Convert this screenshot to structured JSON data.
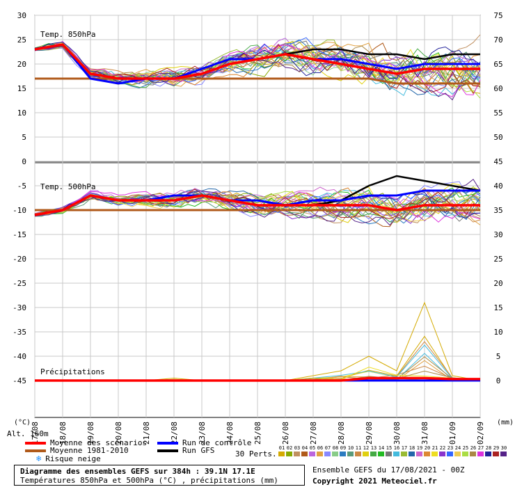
{
  "chart_data": {
    "type": "line",
    "x_dates": [
      "17/08",
      "18/08",
      "19/08",
      "20/08",
      "21/08",
      "22/08",
      "23/08",
      "24/08",
      "25/08",
      "26/08",
      "27/08",
      "28/08",
      "29/08",
      "30/08",
      "31/08",
      "01/09",
      "02/09"
    ],
    "left_axis": {
      "label": "(°C)",
      "ticks": [
        30,
        25,
        20,
        15,
        10,
        5,
        0,
        -5,
        -10,
        -15,
        -20,
        -25,
        -30,
        -35,
        -40,
        -45
      ]
    },
    "right_axis": {
      "label": "(mm)",
      "ticks": [
        75,
        70,
        65,
        60,
        55,
        50,
        45,
        40,
        35,
        30,
        25,
        20,
        15,
        10,
        5,
        0
      ]
    },
    "panels": {
      "t850": {
        "label": "Temp. 850hPa",
        "mean_scenarios": [
          23,
          24,
          18,
          17,
          17,
          17,
          18,
          20,
          21,
          22,
          21,
          20,
          19,
          18,
          19,
          19,
          19
        ],
        "mean_1981_2010": [
          17,
          17,
          17,
          17,
          17,
          17,
          17,
          17,
          17,
          17,
          17,
          17,
          17,
          16,
          16,
          16,
          16
        ],
        "control": [
          23,
          24,
          17,
          16,
          17,
          17,
          19,
          21,
          21,
          22,
          21,
          21,
          20,
          19,
          20,
          20,
          20
        ],
        "gfs": [
          23,
          24,
          18,
          17,
          17,
          17,
          18,
          20,
          21,
          22,
          23,
          23,
          22,
          22,
          21,
          22,
          22
        ]
      },
      "t500": {
        "label": "Temp. 500hPa",
        "mean_scenarios": [
          -11,
          -10,
          -7,
          -8,
          -8,
          -8,
          -7,
          -8,
          -9,
          -9,
          -9,
          -9,
          -9,
          -10,
          -9,
          -9,
          -9
        ],
        "mean_1981_2010": [
          -10,
          -10,
          -10,
          -10,
          -10,
          -10,
          -10,
          -10,
          -10,
          -10,
          -10,
          -10,
          -10,
          -10,
          -10,
          -10,
          -10
        ],
        "control": [
          -11,
          -10,
          -7,
          -8,
          -8,
          -7,
          -7,
          -8,
          -8,
          -9,
          -8,
          -8,
          -7,
          -7,
          -6,
          -6,
          -6
        ],
        "gfs": [
          -11,
          -10,
          -7,
          -8,
          -8,
          -8,
          -7,
          -8,
          -9,
          -9,
          -9,
          -8,
          -5,
          -3,
          -4,
          -5,
          -6
        ]
      },
      "precip": {
        "label": "Précipitations",
        "mean_scenarios": [
          0,
          0,
          0,
          0,
          0,
          0,
          0,
          0,
          0,
          0,
          0,
          0,
          0.5,
          0.5,
          0.5,
          0.3,
          0.3
        ],
        "control": [
          0,
          0,
          0,
          0,
          0,
          0,
          0,
          0,
          0,
          0,
          0,
          0,
          0,
          0,
          0,
          0,
          0
        ],
        "gfs": [
          0,
          0,
          0,
          0,
          0,
          0,
          0,
          0,
          0,
          0,
          0,
          0,
          0,
          0,
          0,
          0,
          0
        ],
        "peak_member": [
          0,
          0,
          0,
          0,
          0,
          0.5,
          0,
          0,
          0,
          0,
          1,
          2,
          5,
          2,
          16,
          1,
          0
        ]
      }
    },
    "ensemble_members": 30
  },
  "legend": {
    "mean_scenarios": "Moyenne des scénarios",
    "mean_1981_2010": "Moyenne 1981-2010",
    "snow_risk": "Risque neige",
    "control_run": "Run de contrôle",
    "gfs_run": "Run GFS",
    "perts_label": "30 Perts.",
    "colors": {
      "mean_scenarios": "#ff0000",
      "mean_1981_2010": "#b05a1a",
      "control_run": "#0000ff",
      "gfs_run": "#000000"
    }
  },
  "alt": "Alt. 160m",
  "info": {
    "title": "Diagramme des ensembles GEFS sur 384h : 39.1N 17.1E",
    "subtitle": "Températures 850hPa et 500hPa (°C) , précipitations (mm)",
    "ensemble": "Ensemble GEFS du 17/08/2021 - 00Z",
    "copyright": "Copyright 2021 Meteociel.fr"
  },
  "perts": {
    "numbers": [
      "01",
      "02",
      "03",
      "04",
      "05",
      "06",
      "07",
      "08",
      "09",
      "10",
      "11",
      "12",
      "13",
      "14",
      "15",
      "16",
      "17",
      "18",
      "19",
      "20",
      "21",
      "22",
      "23",
      "24",
      "25",
      "26",
      "27",
      "28",
      "29",
      "30"
    ],
    "colors": [
      "#d4aa00",
      "#88aa00",
      "#c09060",
      "#b05a1a",
      "#bb66dd",
      "#e0a040",
      "#8888ff",
      "#88cc88",
      "#2b7bc0",
      "#5a9a7a",
      "#cc8844",
      "#e0d010",
      "#44aa44",
      "#22bb22",
      "#777777",
      "#44bbdd",
      "#99bb33",
      "#2266aa",
      "#cc66cc",
      "#dd8833",
      "#eedd22",
      "#8833cc",
      "#3366ff",
      "#eecc55",
      "#aadd44",
      "#aa8844",
      "#dd33dd",
      "#222299",
      "#aa2222",
      "#552288"
    ]
  }
}
